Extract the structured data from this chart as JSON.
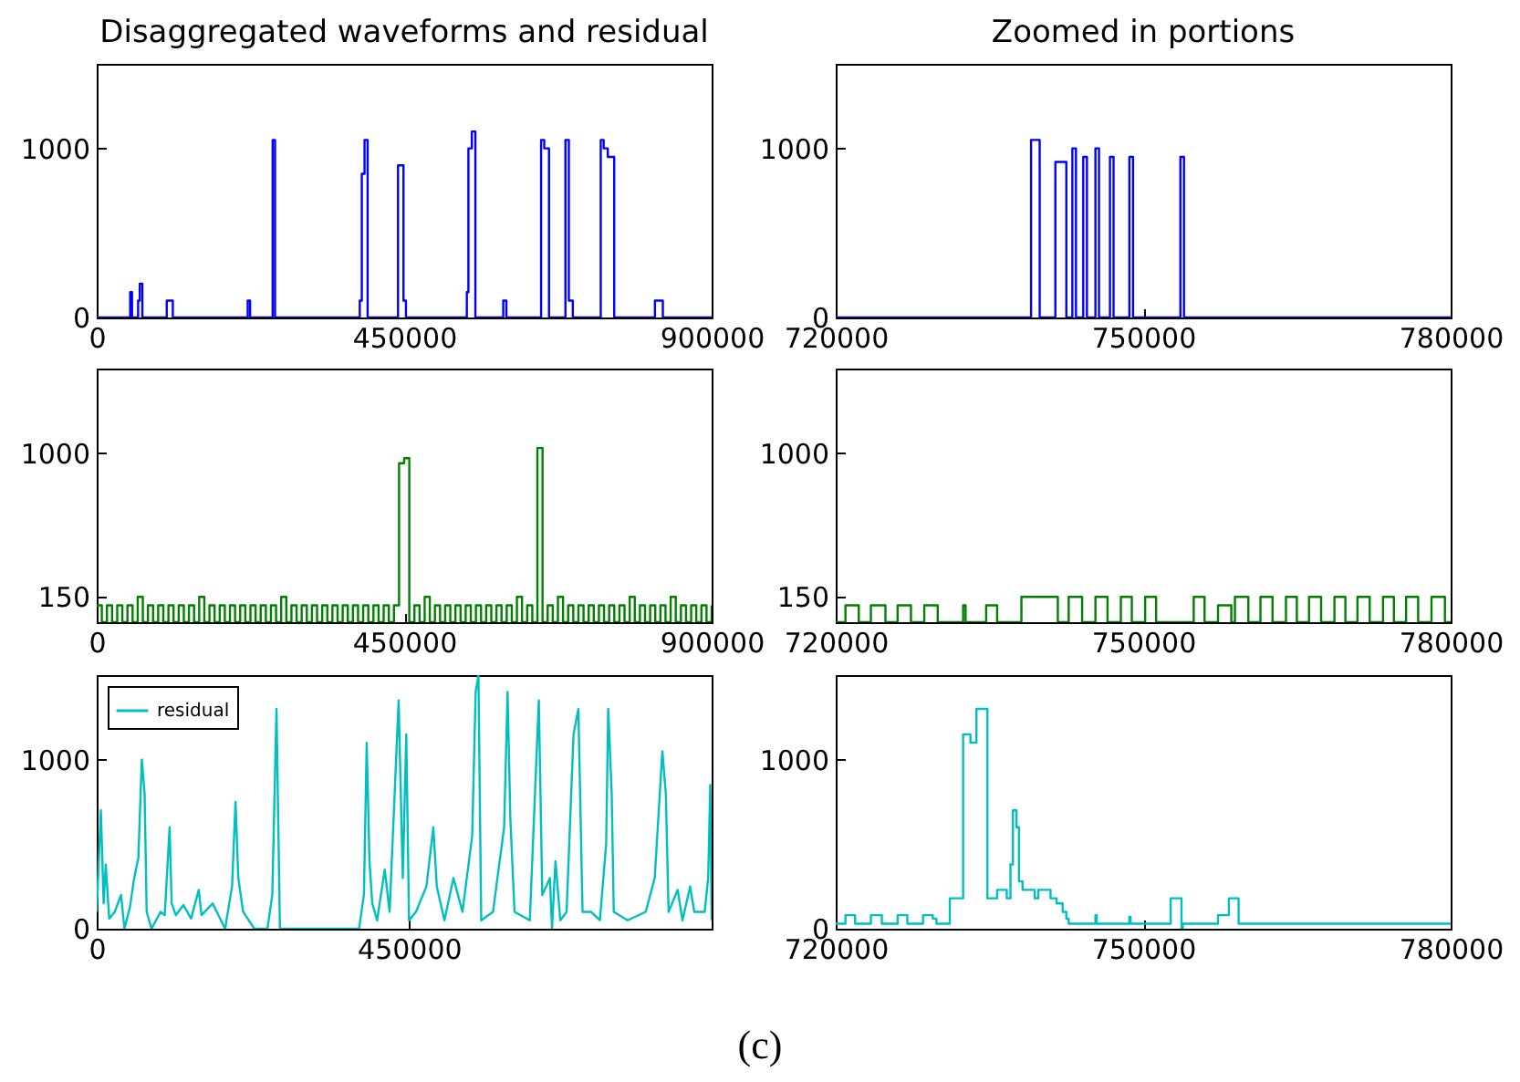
{
  "chart_data": [
    {
      "type": "step",
      "title": "Disaggregated waveforms and residual",
      "xlim": [
        0,
        900000
      ],
      "xticks": [
        0,
        450000,
        900000
      ],
      "ylim": [
        0,
        1500
      ],
      "yticks": [
        0,
        1000
      ],
      "series": [
        {
          "color": "#0000ff",
          "x": [
            0,
            49000,
            51700,
            60600,
            63000,
            66800,
            102500,
            111400,
            221000,
            224500,
            257500,
            261000,
            385000,
            388000,
            392000,
            396500,
            441000,
            449000,
            452600,
            541700,
            544000,
            549000,
            554200,
            595000,
            599600,
            650400,
            655000,
            662000,
            686000,
            691000,
            696800,
            737700,
            742000,
            748000,
            757400,
            817000,
            828600,
            900000
          ],
          "values": [
            0,
            150,
            0,
            100,
            200,
            0,
            100,
            0,
            100,
            0,
            1050,
            0,
            100,
            850,
            1050,
            0,
            900,
            100,
            0,
            150,
            1000,
            1100,
            0,
            100,
            0,
            1050,
            1000,
            0,
            1050,
            100,
            0,
            1050,
            1000,
            950,
            0,
            100,
            0,
            0
          ]
        }
      ]
    },
    {
      "type": "step",
      "title": "Zoomed in portions",
      "xlim": [
        720000,
        780000
      ],
      "xticks": [
        720000,
        750000,
        780000
      ],
      "ylim": [
        0,
        1500
      ],
      "yticks": [
        0,
        1000
      ],
      "series": [
        {
          "color": "#0000ff",
          "x": [
            720000,
            739060,
            739900,
            741430,
            742500,
            743090,
            743440,
            744150,
            744510,
            745340,
            745690,
            746760,
            747110,
            748650,
            749010,
            753630,
            753980,
            780000
          ],
          "values": [
            0,
            1050,
            0,
            920,
            0,
            1000,
            0,
            950,
            0,
            1000,
            0,
            950,
            0,
            950,
            0,
            950,
            0,
            0
          ]
        }
      ]
    },
    {
      "type": "step",
      "xlim": [
        0,
        900000
      ],
      "xticks": [
        0,
        450000,
        900000
      ],
      "ylim": [
        0,
        1500
      ],
      "yticks": [
        150,
        1000
      ],
      "series": [
        {
          "color": "#008000",
          "x": [
            0,
            7500,
            15000,
            22500,
            30000,
            37500,
            45000,
            52500,
            60000,
            67500,
            75000,
            82500,
            90000,
            97500,
            105000,
            112500,
            120000,
            127500,
            135000,
            142500,
            150000,
            157500,
            165000,
            172500,
            180000,
            187500,
            195000,
            202500,
            210000,
            217500,
            225000,
            232500,
            240000,
            247500,
            255000,
            262500,
            270000,
            277500,
            285000,
            292500,
            300000,
            307500,
            315000,
            322500,
            330000,
            337500,
            345000,
            352500,
            360000,
            367500,
            375000,
            382500,
            390000,
            397500,
            405000,
            412500,
            420000,
            427500,
            435000,
            442500,
            450000,
            457500,
            465000,
            472500,
            480000,
            487500,
            495000,
            502500,
            510000,
            517500,
            525000,
            532500,
            540000,
            547500,
            555000,
            562500,
            570000,
            577500,
            585000,
            592500,
            600000,
            607500,
            615000,
            622500,
            630000,
            637500,
            645000,
            652500,
            660000,
            667500,
            675000,
            682500,
            690000,
            697500,
            705000,
            712500,
            720000,
            727500,
            735000,
            742500,
            750000,
            757500,
            765000,
            772500,
            780000,
            787500,
            795000,
            802500,
            810000,
            817500,
            825000,
            832500,
            840000,
            847500,
            855000,
            862500,
            870000,
            877500,
            885000,
            892500,
            900000
          ],
          "values": [
            100,
            0,
            100,
            0,
            100,
            0,
            100,
            0,
            150,
            0,
            100,
            0,
            100,
            0,
            100,
            0,
            100,
            0,
            100,
            0,
            150,
            0,
            100,
            0,
            100,
            0,
            100,
            0,
            100,
            0,
            100,
            0,
            100,
            0,
            100,
            0,
            150,
            0,
            100,
            0,
            100,
            0,
            100,
            0,
            100,
            0,
            100,
            0,
            100,
            0,
            100,
            0,
            100,
            0,
            100,
            0,
            100,
            0,
            100,
            940,
            970,
            0,
            100,
            0,
            150,
            0,
            100,
            0,
            100,
            0,
            100,
            0,
            100,
            0,
            100,
            0,
            100,
            0,
            100,
            0,
            100,
            0,
            150,
            0,
            100,
            0,
            1030,
            0,
            100,
            0,
            150,
            0,
            100,
            0,
            100,
            0,
            100,
            0,
            100,
            0,
            100,
            0,
            100,
            0,
            150,
            0,
            100,
            0,
            100,
            0,
            100,
            0,
            150,
            0,
            100,
            0,
            100,
            0,
            100,
            0,
            100
          ]
        }
      ]
    },
    {
      "type": "step",
      "xlim": [
        720000,
        780000
      ],
      "xticks": [
        720000,
        750000,
        780000
      ],
      "ylim": [
        0,
        1500
      ],
      "yticks": [
        150,
        1000
      ],
      "series": [
        {
          "color": "#008000",
          "x": [
            720000,
            720950,
            722250,
            723430,
            724850,
            726040,
            727340,
            728640,
            729950,
            732430,
            732670,
            734680,
            735750,
            738120,
            741670,
            742730,
            744040,
            745340,
            746520,
            747820,
            748890,
            750190,
            751260,
            754930,
            755990,
            757300,
            758600,
            758950,
            760260,
            761440,
            762620,
            763930,
            764990,
            766180,
            767360,
            768660,
            769730,
            770910,
            772100,
            773400,
            774460,
            775650,
            776830,
            778130,
            779440,
            780000
          ],
          "values": [
            0,
            100,
            0,
            100,
            0,
            100,
            0,
            100,
            0,
            100,
            0,
            100,
            0,
            150,
            0,
            150,
            0,
            150,
            0,
            150,
            0,
            150,
            0,
            150,
            0,
            100,
            0,
            150,
            0,
            150,
            0,
            150,
            0,
            150,
            0,
            150,
            0,
            150,
            0,
            150,
            0,
            150,
            0,
            150,
            0,
            0
          ]
        }
      ]
    },
    {
      "type": "line",
      "xlim": [
        0,
        886000
      ],
      "xticks": [
        0,
        450000
      ],
      "ylim": [
        0,
        1500
      ],
      "yticks": [
        0,
        1000
      ],
      "legend": "top left",
      "annotations": [
        "(c)"
      ],
      "series": [
        {
          "name": "residual",
          "color": "#00bfbf",
          "x": [
            0,
            6000,
            10000,
            13000,
            18000,
            26000,
            35000,
            40000,
            48000,
            54000,
            60000,
            65000,
            69000,
            72000,
            79000,
            92000,
            98000,
            105000,
            108000,
            114000,
            125000,
            136000,
            147000,
            151000,
            167000,
            185000,
            195000,
            200000,
            204000,
            211000,
            227000,
            246000,
            253000,
            259000,
            264000,
            378000,
            385000,
            389000,
            393000,
            397000,
            404000,
            415000,
            422000,
            435000,
            441000,
            446000,
            450000,
            460000,
            475000,
            485000,
            490000,
            501000,
            514000,
            527000,
            541000,
            546000,
            550000,
            554000,
            571000,
            587000,
            592000,
            596000,
            602000,
            624000,
            637000,
            642000,
            653000,
            656000,
            661000,
            668000,
            677000,
            687000,
            694000,
            700000,
            712000,
            725000,
            734000,
            737000,
            742000,
            745000,
            765000,
            791000,
            804000,
            815000,
            820000,
            824000,
            837000,
            844000,
            855000,
            861000,
            876000,
            881000,
            884000,
            886000
          ],
          "values": [
            100,
            700,
            150,
            380,
            60,
            100,
            200,
            0,
            130,
            300,
            420,
            1000,
            800,
            100,
            0,
            100,
            80,
            600,
            150,
            80,
            140,
            60,
            230,
            80,
            150,
            0,
            250,
            750,
            300,
            100,
            0,
            0,
            200,
            1300,
            0,
            0,
            200,
            1100,
            400,
            150,
            50,
            350,
            100,
            1350,
            300,
            1150,
            50,
            100,
            250,
            600,
            250,
            50,
            300,
            100,
            550,
            1400,
            1500,
            50,
            100,
            600,
            1400,
            650,
            100,
            50,
            1350,
            200,
            300,
            0,
            400,
            50,
            100,
            1150,
            1300,
            100,
            100,
            50,
            500,
            1300,
            800,
            100,
            50,
            100,
            300,
            1050,
            800,
            100,
            230,
            50,
            250,
            100,
            100,
            300,
            850,
            50
          ]
        }
      ]
    },
    {
      "type": "step",
      "xlim": [
        720000,
        780000
      ],
      "xticks": [
        720000,
        750000,
        780000
      ],
      "ylim": [
        0,
        1500
      ],
      "yticks": [
        0,
        1000
      ],
      "series": [
        {
          "color": "#00bfbf",
          "x": [
            720000,
            720950,
            721890,
            723430,
            724500,
            726040,
            726990,
            728520,
            729470,
            729830,
            731130,
            732430,
            733140,
            733730,
            734800,
            735750,
            736690,
            737050,
            737290,
            737640,
            737880,
            738230,
            739420,
            739770,
            740960,
            741550,
            742140,
            742500,
            742730,
            745340,
            745460,
            748650,
            748770,
            752680,
            753740,
            753860,
            757300,
            758360,
            759310,
            780000
          ],
          "values": [
            30,
            80,
            30,
            80,
            30,
            80,
            30,
            80,
            60,
            30,
            180,
            1150,
            1100,
            1300,
            180,
            230,
            180,
            380,
            700,
            600,
            280,
            230,
            180,
            230,
            180,
            150,
            100,
            60,
            30,
            80,
            30,
            70,
            30,
            180,
            0,
            30,
            80,
            180,
            30,
            30
          ]
        }
      ]
    }
  ]
}
